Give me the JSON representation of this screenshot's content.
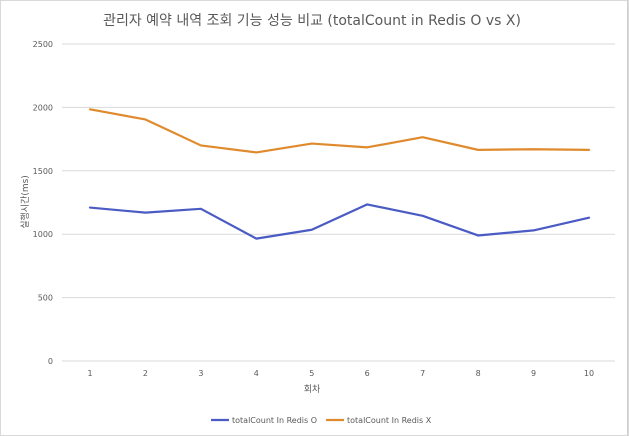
{
  "chart_data": {
    "type": "line",
    "title": "관리자 예약 내역 조회 기능 성능 비교 (totalCount in Redis O vs X)",
    "xlabel": "회차",
    "ylabel": "실행시간(ms)",
    "categories": [
      "1",
      "2",
      "3",
      "4",
      "5",
      "6",
      "7",
      "8",
      "9",
      "10"
    ],
    "ylim": [
      0,
      2500
    ],
    "yticks": [
      0,
      500,
      1000,
      1500,
      2000,
      2500
    ],
    "ytick_labels": [
      "0",
      "500",
      "1000",
      "1500",
      "2000",
      "2500"
    ],
    "grid": true,
    "legend_position": "bottom",
    "series": [
      {
        "name": "totalCount In Redis O",
        "color": "#4a5bc4",
        "values": [
          1210,
          1170,
          1200,
          965,
          1035,
          1235,
          1145,
          990,
          1030,
          1130
        ]
      },
      {
        "name": "totalCount In Redis X",
        "color": "#e08a2e",
        "values": [
          1985,
          1905,
          1700,
          1645,
          1715,
          1685,
          1765,
          1665,
          1670,
          1665
        ]
      }
    ]
  }
}
